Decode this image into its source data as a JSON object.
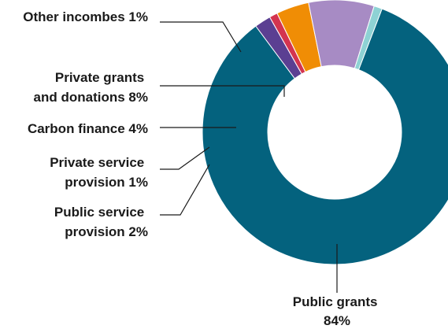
{
  "chart_data": {
    "type": "pie",
    "style": "donut",
    "slices": [
      {
        "label": "Public grants 84%",
        "lines": [
          "Public grants",
          "84%"
        ],
        "value": 84,
        "color": "#04627e"
      },
      {
        "label": "Public service provision 2%",
        "lines": [
          "Public service",
          "provision 2%"
        ],
        "value": 2,
        "color": "#5b3f92"
      },
      {
        "label": "Private service provision 1%",
        "lines": [
          "Private service",
          "provision 1%"
        ],
        "value": 1,
        "color": "#d4344f"
      },
      {
        "label": "Carbon finance 4%",
        "lines": [
          "Carbon finance 4%"
        ],
        "value": 4,
        "color": "#f08d05"
      },
      {
        "label": "Private grants and donations 8%",
        "lines": [
          "Private grants",
          "and donations 8%"
        ],
        "value": 8,
        "color": "#a78bc4"
      },
      {
        "label": "Other incombes 1%",
        "lines": [
          "Other incombes 1%"
        ],
        "value": 1,
        "color": "#8ed2d4"
      }
    ]
  }
}
